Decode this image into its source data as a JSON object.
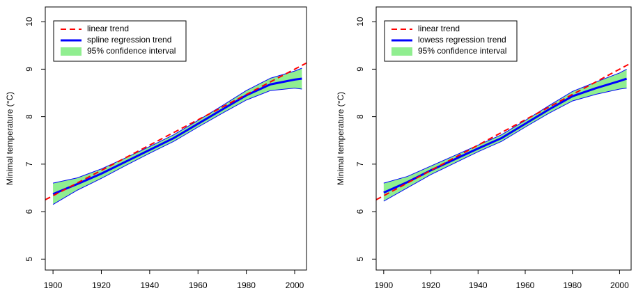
{
  "chart_data": [
    {
      "type": "line",
      "y_label": "Minimal temperature (°C)",
      "xlim": [
        1896.8,
        2004.9
      ],
      "ylim": [
        4.77,
        10.31
      ],
      "xticks": [
        1900,
        1920,
        1940,
        1960,
        1980,
        2000
      ],
      "yticks": [
        5,
        6,
        7,
        8,
        9,
        10
      ],
      "series": [
        {
          "name": "linear trend",
          "color": "#ff0000",
          "dashed": true,
          "x": [
            1896.8,
            2004.9
          ],
          "values": [
            6.25,
            9.13
          ]
        },
        {
          "name": "spline regression trend",
          "color": "#0000ff",
          "dashed": false,
          "x": [
            1900,
            1910,
            1920,
            1930,
            1940,
            1950,
            1960,
            1970,
            1980,
            1990,
            2000,
            2003
          ],
          "values": [
            6.37,
            6.58,
            6.8,
            7.05,
            7.3,
            7.55,
            7.85,
            8.15,
            8.45,
            8.68,
            8.78,
            8.8
          ]
        }
      ],
      "interval": {
        "name": "95% confidence interval",
        "color": "#90ee90",
        "x": [
          1900,
          1910,
          1920,
          1930,
          1940,
          1950,
          1960,
          1970,
          1980,
          1990,
          2000,
          2003
        ],
        "lower": [
          6.15,
          6.45,
          6.7,
          6.97,
          7.23,
          7.48,
          7.78,
          8.07,
          8.35,
          8.55,
          8.6,
          8.58
        ],
        "upper": [
          6.6,
          6.71,
          6.9,
          7.13,
          7.37,
          7.62,
          7.92,
          8.23,
          8.55,
          8.81,
          8.96,
          9.02
        ]
      }
    },
    {
      "type": "line",
      "y_label": "Minimal temperature (°C)",
      "xlim": [
        1896.8,
        2004.9
      ],
      "ylim": [
        4.77,
        10.31
      ],
      "xticks": [
        1900,
        1920,
        1940,
        1960,
        1980,
        2000
      ],
      "yticks": [
        5,
        6,
        7,
        8,
        9,
        10
      ],
      "series": [
        {
          "name": "linear trend",
          "color": "#ff0000",
          "dashed": true,
          "x": [
            1896.8,
            2004.9
          ],
          "values": [
            6.25,
            9.13
          ]
        },
        {
          "name": "lowess regression trend",
          "color": "#0000ff",
          "dashed": false,
          "x": [
            1900,
            1910,
            1920,
            1930,
            1940,
            1950,
            1960,
            1970,
            1980,
            1990,
            2000,
            2003
          ],
          "values": [
            6.4,
            6.62,
            6.87,
            7.1,
            7.33,
            7.55,
            7.85,
            8.15,
            8.43,
            8.6,
            8.75,
            8.8
          ]
        }
      ],
      "interval": {
        "name": "95% confidence interval",
        "color": "#90ee90",
        "x": [
          1900,
          1910,
          1920,
          1930,
          1940,
          1950,
          1960,
          1970,
          1980,
          1990,
          2000,
          2003
        ],
        "lower": [
          6.22,
          6.5,
          6.78,
          7.02,
          7.26,
          7.48,
          7.78,
          8.07,
          8.33,
          8.47,
          8.58,
          8.6
        ],
        "upper": [
          6.6,
          6.74,
          6.96,
          7.18,
          7.4,
          7.62,
          7.92,
          8.23,
          8.53,
          8.73,
          8.92,
          9.0
        ]
      }
    }
  ]
}
